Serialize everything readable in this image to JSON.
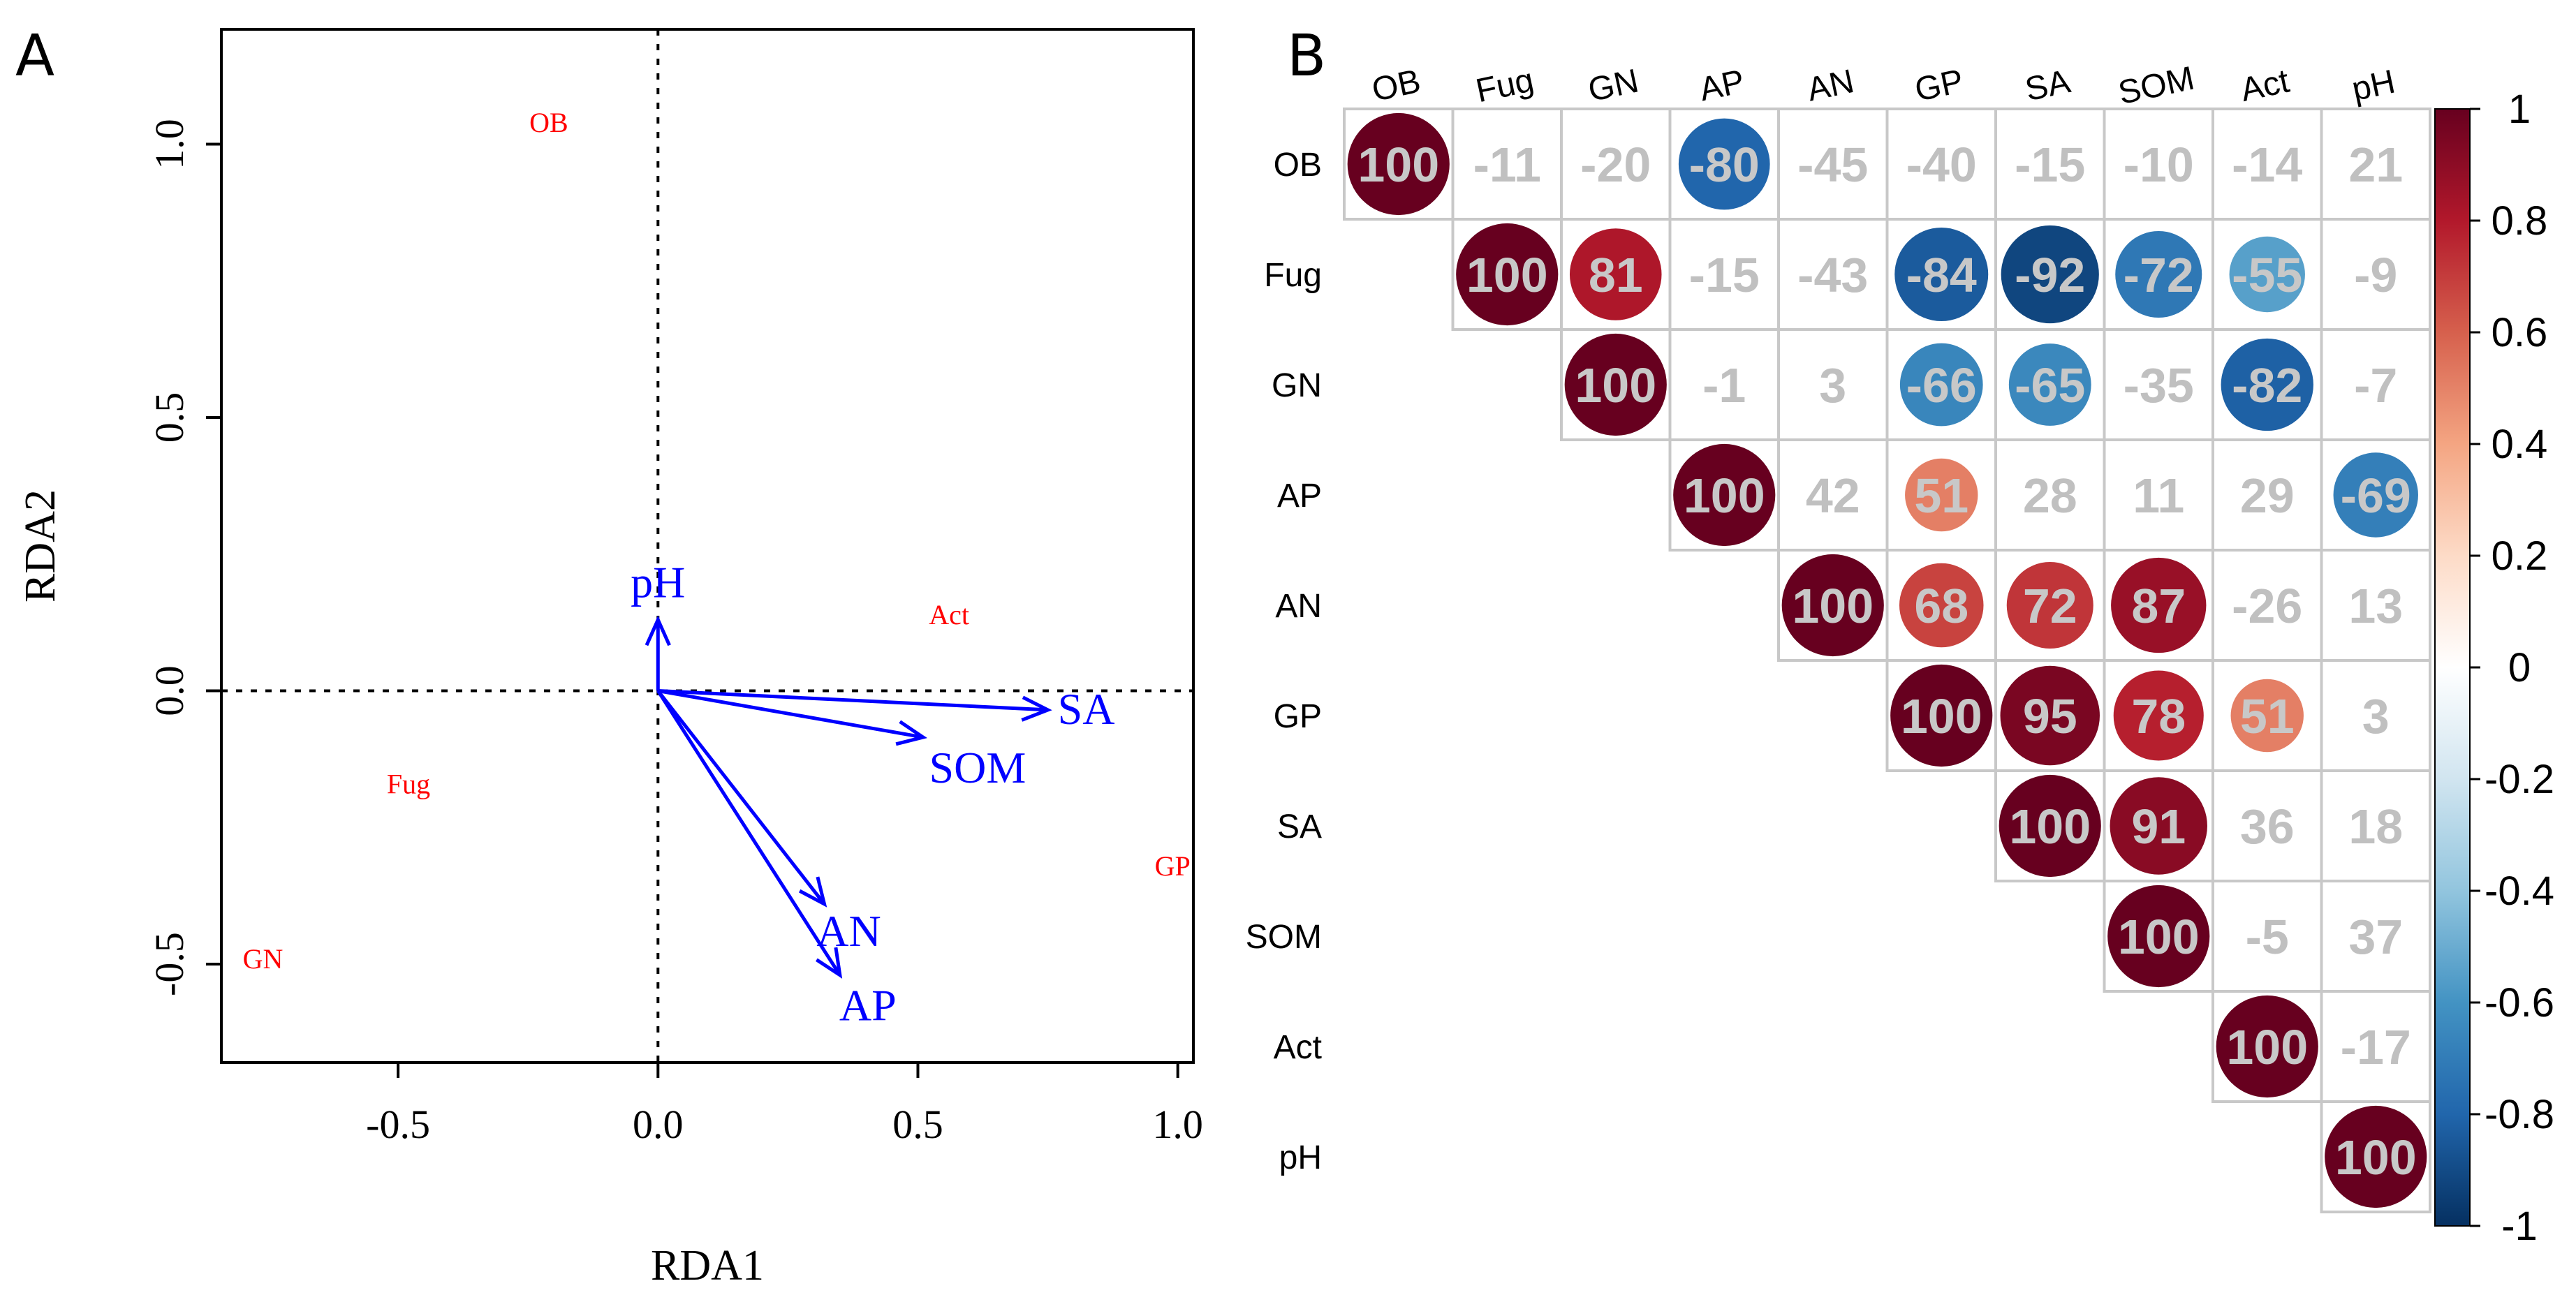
{
  "panels": {
    "a_letter": "A",
    "b_letter": "B"
  },
  "chart_data": [
    {
      "panel": "A",
      "type": "scatter",
      "subtype": "RDA biplot",
      "title": "",
      "xlabel": "RDA1",
      "ylabel": "RDA2",
      "xlim": [
        -0.84,
        1.03
      ],
      "ylim": [
        -0.68,
        1.21
      ],
      "xticks": [
        -0.5,
        0.0,
        0.5,
        1.0
      ],
      "xtick_labels": [
        "-0.5",
        "0.0",
        "0.5",
        "1.0"
      ],
      "yticks": [
        -0.5,
        0.0,
        0.5,
        1.0
      ],
      "ytick_labels": [
        "-0.5",
        "0.0",
        "0.5",
        "1.0"
      ],
      "reference_lines": {
        "x": 0,
        "y": 0,
        "style": "dotted"
      },
      "sites": [
        {
          "label": "OB",
          "x": -0.21,
          "y": 1.04
        },
        {
          "label": "Act",
          "x": 0.56,
          "y": 0.14
        },
        {
          "label": "Fug",
          "x": -0.48,
          "y": -0.17
        },
        {
          "label": "GP",
          "x": 0.99,
          "y": -0.32
        },
        {
          "label": "GN",
          "x": -0.76,
          "y": -0.49
        }
      ],
      "vectors": [
        {
          "label": "pH",
          "x": 0.0,
          "y": 0.13
        },
        {
          "label": "SA",
          "x": 0.75,
          "y": -0.035
        },
        {
          "label": "SOM",
          "x": 0.51,
          "y": -0.085
        },
        {
          "label": "AN",
          "x": 0.32,
          "y": -0.39
        },
        {
          "label": "AP",
          "x": 0.35,
          "y": -0.52
        }
      ],
      "colors": {
        "sites": "#ff0000",
        "vectors": "#0000ff"
      }
    },
    {
      "panel": "B",
      "type": "heatmap",
      "subtype": "upper-triangle correlation plot (values x100)",
      "title": "",
      "variables": [
        "OB",
        "Fug",
        "GN",
        "AP",
        "AN",
        "GP",
        "SA",
        "SOM",
        "Act",
        "pH"
      ],
      "matrix": [
        [
          100,
          -11,
          -20,
          -80,
          -45,
          -40,
          -15,
          -10,
          -14,
          21
        ],
        [
          null,
          100,
          81,
          -15,
          -43,
          -84,
          -92,
          -72,
          -55,
          -9
        ],
        [
          null,
          null,
          100,
          -1,
          3,
          -66,
          -65,
          -35,
          -82,
          -7
        ],
        [
          null,
          null,
          null,
          100,
          42,
          51,
          28,
          11,
          29,
          -69
        ],
        [
          null,
          null,
          null,
          null,
          100,
          68,
          72,
          87,
          -26,
          13
        ],
        [
          null,
          null,
          null,
          null,
          null,
          100,
          95,
          78,
          51,
          3
        ],
        [
          null,
          null,
          null,
          null,
          null,
          null,
          100,
          91,
          36,
          18
        ],
        [
          null,
          null,
          null,
          null,
          null,
          null,
          null,
          100,
          -5,
          37
        ],
        [
          null,
          null,
          null,
          null,
          null,
          null,
          null,
          null,
          100,
          -17
        ],
        [
          null,
          null,
          null,
          null,
          null,
          null,
          null,
          null,
          null,
          100
        ]
      ],
      "significant": [
        [
          true,
          false,
          false,
          true,
          false,
          false,
          false,
          false,
          false,
          false
        ],
        [
          null,
          true,
          true,
          false,
          false,
          true,
          true,
          true,
          true,
          false
        ],
        [
          null,
          null,
          true,
          false,
          false,
          true,
          true,
          false,
          true,
          false
        ],
        [
          null,
          null,
          null,
          true,
          false,
          true,
          false,
          false,
          false,
          true
        ],
        [
          null,
          null,
          null,
          null,
          true,
          true,
          true,
          true,
          false,
          false
        ],
        [
          null,
          null,
          null,
          null,
          null,
          true,
          true,
          true,
          true,
          false
        ],
        [
          null,
          null,
          null,
          null,
          null,
          null,
          true,
          true,
          false,
          false
        ],
        [
          null,
          null,
          null,
          null,
          null,
          null,
          null,
          true,
          false,
          false
        ],
        [
          null,
          null,
          null,
          null,
          null,
          null,
          null,
          null,
          true,
          false
        ],
        [
          null,
          null,
          null,
          null,
          null,
          null,
          null,
          null,
          null,
          true
        ]
      ],
      "colorbar": {
        "range": [
          -1,
          1
        ],
        "ticks": [
          "1",
          "0.8",
          "0.6",
          "0.4",
          "0.2",
          "0",
          "-0.2",
          "-0.4",
          "-0.6",
          "-0.8",
          "-1"
        ],
        "colors": [
          "#67001f",
          "#b2182b",
          "#d6604d",
          "#f4a582",
          "#fddbc7",
          "#ffffff",
          "#d1e5f0",
          "#92c5de",
          "#4393c3",
          "#2166ac",
          "#053061"
        ]
      },
      "colors": {
        "insignificant_text": "#c0c0c0",
        "significant_text": "#c8c8c8",
        "grid": "#c8c8c8"
      }
    }
  ]
}
